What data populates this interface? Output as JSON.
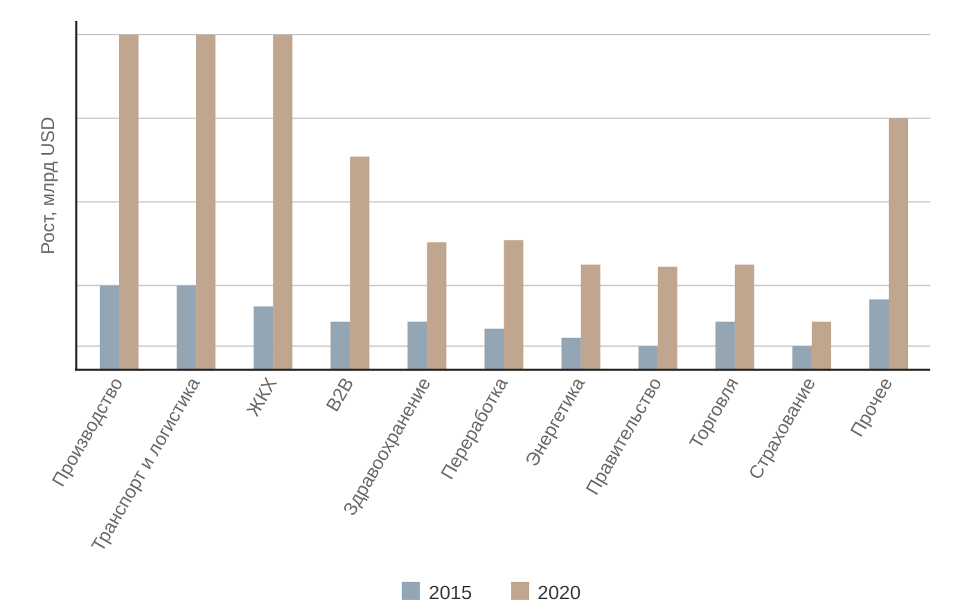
{
  "chart_data": {
    "type": "bar",
    "ylabel": "Рост, млрд USD",
    "categories": [
      "Производство",
      "Транспорт и логистика",
      "ЖКХ",
      "B2B",
      "Здравоохранение",
      "Переработка",
      "Энергетика",
      "Правительство",
      "Торговля",
      "Страхование",
      "Прочее"
    ],
    "series": [
      {
        "name": "2015",
        "color": "#94a5b4",
        "values": [
          1.2,
          1.2,
          0.9,
          0.68,
          0.68,
          0.58,
          0.45,
          0.33,
          0.68,
          0.33,
          1.0
        ]
      },
      {
        "name": "2020",
        "color": "#c1a68f",
        "values": [
          4.8,
          4.8,
          4.8,
          3.05,
          1.82,
          1.85,
          1.5,
          1.47,
          1.5,
          0.68,
          3.6
        ]
      }
    ],
    "ylim": [
      0,
      4.8
    ],
    "gridlines": [
      0.33,
      1.2,
      2.4,
      3.6,
      4.8
    ],
    "grid": true,
    "legend_position": "bottom"
  }
}
